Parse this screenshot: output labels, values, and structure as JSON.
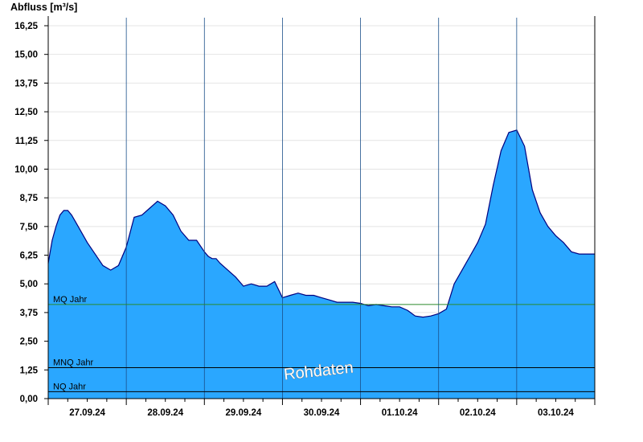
{
  "chart_data": {
    "type": "area",
    "ylabel": "Abfluss [m³/s]",
    "xlabel": "",
    "ylim": [
      0,
      16.6
    ],
    "yticks": [
      "0,00",
      "1,25",
      "2,50",
      "3,75",
      "5,00",
      "6,25",
      "7,50",
      "8,75",
      "10,00",
      "11,25",
      "12,50",
      "13,75",
      "15,00",
      "16,25"
    ],
    "ytick_values": [
      0,
      1.25,
      2.5,
      3.75,
      5.0,
      6.25,
      7.5,
      8.75,
      10.0,
      11.25,
      12.5,
      13.75,
      15.0,
      16.25
    ],
    "xlim": [
      0,
      7
    ],
    "day_labels": [
      "27.09.24",
      "28.09.24",
      "29.09.24",
      "30.09.24",
      "01.10.24",
      "02.10.24",
      "03.10.24"
    ],
    "grid": true,
    "fill_color": "#2aa7ff",
    "line_color": "#00007f",
    "series": [
      {
        "x": [
          0.0,
          0.05,
          0.1,
          0.15,
          0.2,
          0.25,
          0.3,
          0.35,
          0.4,
          0.5,
          0.6,
          0.7,
          0.8,
          0.9,
          1.0,
          1.1,
          1.2,
          1.3,
          1.4,
          1.5,
          1.6,
          1.7,
          1.8,
          1.9,
          2.0,
          2.05,
          2.1,
          2.15,
          2.2,
          2.3,
          2.4,
          2.5,
          2.6,
          2.7,
          2.8,
          2.9,
          3.0,
          3.1,
          3.2,
          3.3,
          3.4,
          3.5,
          3.6,
          3.7,
          3.8,
          3.9,
          4.0,
          4.1,
          4.2,
          4.3,
          4.4,
          4.5,
          4.6,
          4.7,
          4.8,
          4.9,
          5.0,
          5.1,
          5.2,
          5.3,
          5.4,
          5.5,
          5.6,
          5.7,
          5.8,
          5.9,
          6.0,
          6.1,
          6.2,
          6.3,
          6.4,
          6.5,
          6.6,
          6.7,
          6.8,
          6.9,
          7.0
        ],
        "y": [
          5.9,
          6.9,
          7.5,
          8.0,
          8.2,
          8.2,
          8.0,
          7.7,
          7.4,
          6.8,
          6.3,
          5.8,
          5.6,
          5.8,
          6.6,
          7.9,
          8.0,
          8.3,
          8.6,
          8.4,
          8.0,
          7.3,
          6.9,
          6.9,
          6.4,
          6.2,
          6.1,
          6.1,
          5.9,
          5.6,
          5.3,
          4.9,
          5.0,
          4.9,
          4.9,
          5.1,
          4.4,
          4.5,
          4.6,
          4.5,
          4.5,
          4.4,
          4.3,
          4.2,
          4.2,
          4.2,
          4.15,
          4.05,
          4.1,
          4.05,
          4.0,
          4.0,
          3.85,
          3.6,
          3.55,
          3.6,
          3.7,
          3.9,
          5.0,
          5.6,
          6.2,
          6.8,
          7.6,
          9.3,
          10.8,
          11.6,
          11.7,
          11.0,
          9.1,
          8.1,
          7.5,
          7.1,
          6.8,
          6.4,
          6.3,
          6.3,
          6.3
        ]
      }
    ],
    "reference_lines": [
      {
        "name": "MQ Jahr",
        "value": 4.1,
        "color": "#2a8a2a"
      },
      {
        "name": "MNQ Jahr",
        "value": 1.35,
        "color": "#000000"
      },
      {
        "name": "NQ Jahr",
        "value": 0.3,
        "color": "#000000"
      }
    ],
    "annotation": "Rohdaten"
  }
}
